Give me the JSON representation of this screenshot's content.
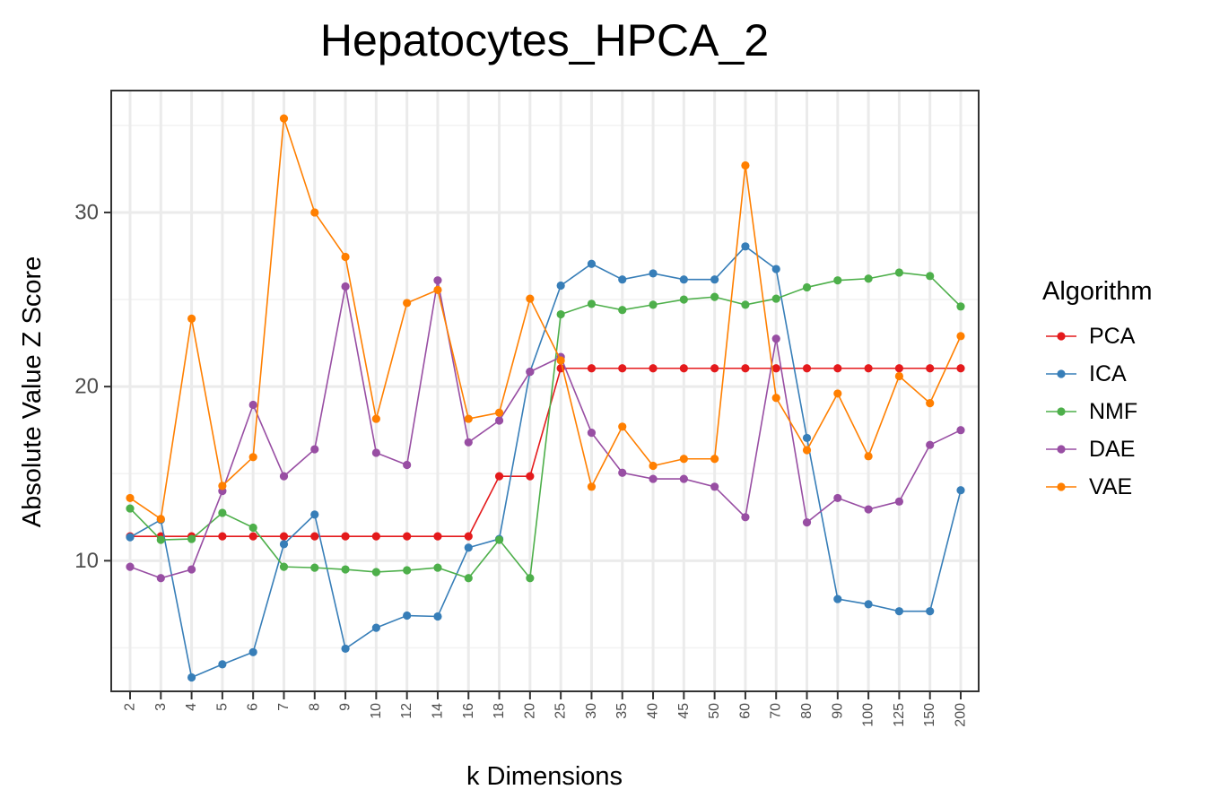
{
  "chart_data": {
    "type": "line",
    "title": "Hepatocytes_HPCA_2",
    "xlabel": "k Dimensions",
    "ylabel": "Absolute Value Z Score",
    "categories": [
      "2",
      "3",
      "4",
      "5",
      "6",
      "7",
      "8",
      "9",
      "10",
      "12",
      "14",
      "16",
      "18",
      "20",
      "25",
      "30",
      "35",
      "40",
      "45",
      "50",
      "60",
      "70",
      "80",
      "90",
      "100",
      "125",
      "150",
      "200"
    ],
    "ylim": [
      2.5,
      37
    ],
    "yticks": [
      10,
      20,
      30
    ],
    "ytick_labels": [
      "10",
      "20",
      "30"
    ],
    "grid": true,
    "legend": {
      "title": "Algorithm",
      "position": "right"
    },
    "series": [
      {
        "name": "PCA",
        "color": "#e41a1c",
        "values": [
          11.4,
          11.4,
          11.4,
          11.4,
          11.4,
          11.4,
          11.4,
          11.4,
          11.4,
          11.4,
          11.4,
          11.4,
          14.85,
          14.85,
          21.05,
          21.05,
          21.05,
          21.05,
          21.05,
          21.05,
          21.05,
          21.05,
          21.05,
          21.05,
          21.05,
          21.05,
          21.05,
          21.05
        ]
      },
      {
        "name": "ICA",
        "color": "#377eb8",
        "values": [
          11.35,
          12.35,
          3.3,
          4.05,
          4.75,
          10.95,
          12.65,
          4.95,
          6.15,
          6.85,
          6.8,
          10.75,
          11.25,
          20.85,
          25.8,
          27.05,
          26.15,
          26.5,
          26.15,
          26.15,
          28.05,
          26.75,
          17.05,
          7.8,
          7.5,
          7.1,
          7.1,
          14.05
        ]
      },
      {
        "name": "NMF",
        "color": "#4daf4a",
        "values": [
          13.0,
          11.2,
          11.25,
          12.75,
          11.9,
          9.65,
          9.6,
          9.5,
          9.35,
          9.45,
          9.6,
          9.0,
          11.2,
          9.0,
          24.15,
          24.75,
          24.4,
          24.7,
          25.0,
          25.15,
          24.7,
          25.05,
          25.7,
          26.1,
          26.2,
          26.55,
          26.35,
          24.6
        ]
      },
      {
        "name": "DAE",
        "color": "#984ea3",
        "values": [
          9.65,
          9.0,
          9.5,
          14.0,
          18.95,
          14.85,
          16.4,
          25.75,
          16.2,
          15.5,
          26.1,
          16.8,
          18.05,
          20.85,
          21.7,
          17.35,
          15.05,
          14.7,
          14.7,
          14.25,
          12.5,
          22.75,
          12.2,
          13.6,
          12.95,
          13.4,
          16.65,
          17.5
        ]
      },
      {
        "name": "VAE",
        "color": "#ff7f00",
        "values": [
          13.6,
          12.4,
          23.9,
          14.3,
          15.95,
          35.4,
          30.0,
          27.45,
          18.15,
          24.8,
          25.55,
          18.15,
          18.5,
          25.05,
          21.5,
          14.25,
          17.7,
          15.45,
          15.85,
          15.85,
          32.7,
          19.35,
          16.35,
          19.6,
          16.0,
          20.6,
          19.05,
          22.9
        ]
      }
    ]
  }
}
